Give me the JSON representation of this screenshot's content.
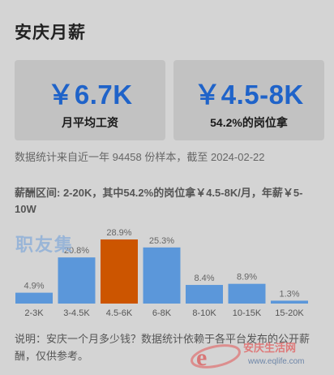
{
  "page_title": "安庆月薪",
  "cards": [
    {
      "value": "￥6.7K",
      "caption": "月平均工资"
    },
    {
      "value": "￥4.5-8K",
      "caption": "54.2%的岗位拿"
    }
  ],
  "source_text": "数据统计来自近一年 94458 份样本，截至 2024-02-22",
  "range_text": "薪酬区间: 2-20K，其中54.2%的岗位拿￥4.5-8K/月，年薪￥5-10W",
  "watermark_text": "职友集",
  "note_text": "说明：安庆一个月多少钱？数据统计依赖于各平台发布的公开薪酬，仅供参考。",
  "logo_text": "安庆生活网",
  "logo_sub": "www.eqlife.com",
  "colors": {
    "bar": "#5b97da",
    "highlight": "#cc5500",
    "value_blue": "#1f63c9"
  },
  "chart_data": {
    "type": "bar",
    "categories": [
      "2-3K",
      "3-4.5K",
      "4.5-6K",
      "6-8K",
      "8-10K",
      "10-15K",
      "15-20K"
    ],
    "values": [
      4.9,
      20.8,
      28.9,
      25.3,
      8.4,
      8.9,
      1.3
    ],
    "labels": [
      "4.9%",
      "20.8%",
      "28.9%",
      "25.3%",
      "8.4%",
      "8.9%",
      "1.3%"
    ],
    "highlight_index": 2,
    "ylim": [
      0,
      30
    ],
    "unit": "%"
  }
}
